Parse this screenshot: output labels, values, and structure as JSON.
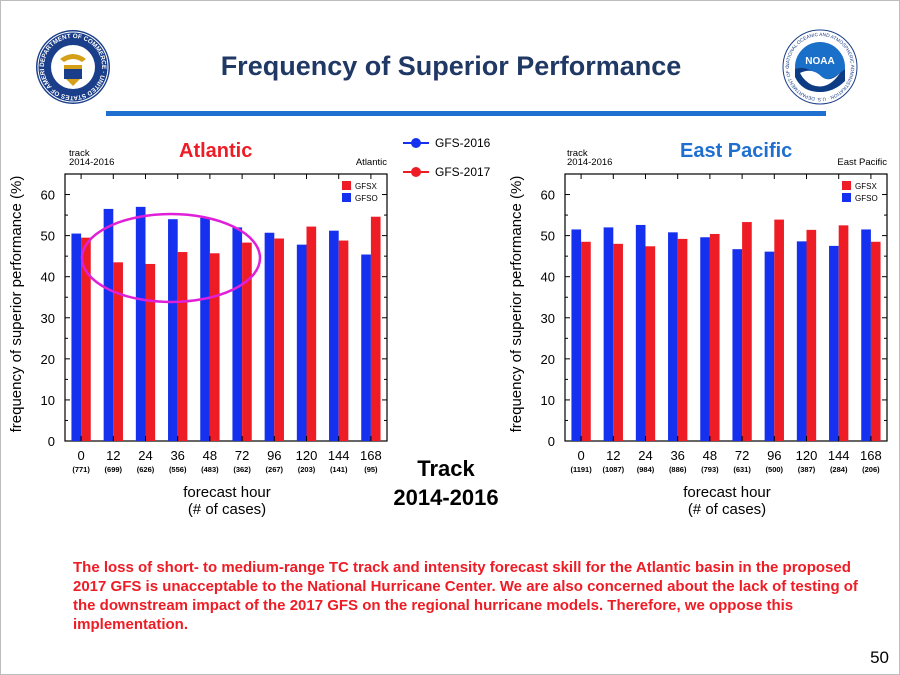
{
  "slide": {
    "title": "Frequency of Superior Performance",
    "page_number": "50",
    "note": "The loss of short- to medium-range TC track and intensity forecast skill for the Atlantic basin in the proposed 2017 GFS is unacceptable to the National Hurricane Center.  We are also concerned about the lack of testing of the downstream impact of the 2017 GFS on the regional hurricane models. Therefore, we oppose this implementation.",
    "center_label_line1": "Track",
    "center_label_line2": "2014-2016",
    "logo_left": {
      "ring_text": "DEPARTMENT OF COMMERCE · UNITED STATES OF AMERICA"
    },
    "logo_right": {
      "ring_text": "NATIONAL OCEANIC AND ATMOSPHERIC ADMINISTRATION · U.S. DEPARTMENT OF COMMERCE",
      "center_text": "NOAA"
    }
  },
  "legend_main": [
    {
      "label": "GFS-2016",
      "color": "#1530ee"
    },
    {
      "label": "GFS-2017",
      "color": "#ee1c25"
    }
  ],
  "chart_data": [
    {
      "type": "bar",
      "title": "Atlantic",
      "title_color": "#ee1c25",
      "corner_left": [
        "track",
        "2014-2016"
      ],
      "corner_right": "Atlantic",
      "categories": [
        "0",
        "12",
        "24",
        "36",
        "48",
        "72",
        "96",
        "120",
        "144",
        "168"
      ],
      "cases": [
        "(771)",
        "(699)",
        "(626)",
        "(556)",
        "(483)",
        "(362)",
        "(267)",
        "(203)",
        "(141)",
        "(95)"
      ],
      "series": [
        {
          "name": "GFSO",
          "color": "#1530ee",
          "values": [
            50.5,
            56.5,
            57,
            54,
            54.3,
            52,
            50.7,
            47.8,
            51.2,
            45.4
          ]
        },
        {
          "name": "GFSX",
          "color": "#ee1c25",
          "values": [
            49.5,
            43.5,
            43.1,
            46,
            45.7,
            48.3,
            49.3,
            52.2,
            48.8,
            54.6
          ]
        }
      ],
      "legend_order": [
        "GFSX",
        "GFSO"
      ],
      "xlabel": "forecast hour",
      "xlabel2": "(# of cases)",
      "ylabel": "frequency of superior performance (%)",
      "ylim": [
        0,
        65
      ],
      "yticks": [
        0,
        10,
        20,
        30,
        40,
        50,
        60
      ],
      "highlight": "ellipse around 12–72 h"
    },
    {
      "type": "bar",
      "title": "East Pacific",
      "title_color": "#1f6fd1",
      "corner_left": [
        "track",
        "2014-2016"
      ],
      "corner_right": "East Pacific",
      "categories": [
        "0",
        "12",
        "24",
        "36",
        "48",
        "72",
        "96",
        "120",
        "144",
        "168"
      ],
      "cases": [
        "(1191)",
        "(1087)",
        "(984)",
        "(886)",
        "(793)",
        "(631)",
        "(500)",
        "(387)",
        "(284)",
        "(206)"
      ],
      "series": [
        {
          "name": "GFSO",
          "color": "#1530ee",
          "values": [
            51.5,
            52,
            52.6,
            50.8,
            49.6,
            46.7,
            46.1,
            48.6,
            47.5,
            51.5
          ]
        },
        {
          "name": "GFSX",
          "color": "#ee1c25",
          "values": [
            48.5,
            48,
            47.4,
            49.2,
            50.4,
            53.3,
            53.9,
            51.4,
            52.5,
            48.5
          ]
        }
      ],
      "legend_order": [
        "GFSX",
        "GFSO"
      ],
      "xlabel": "forecast hour",
      "xlabel2": "(# of cases)",
      "ylabel": "frequency of superior performance (%)",
      "ylim": [
        0,
        65
      ],
      "yticks": [
        0,
        10,
        20,
        30,
        40,
        50,
        60
      ]
    }
  ]
}
